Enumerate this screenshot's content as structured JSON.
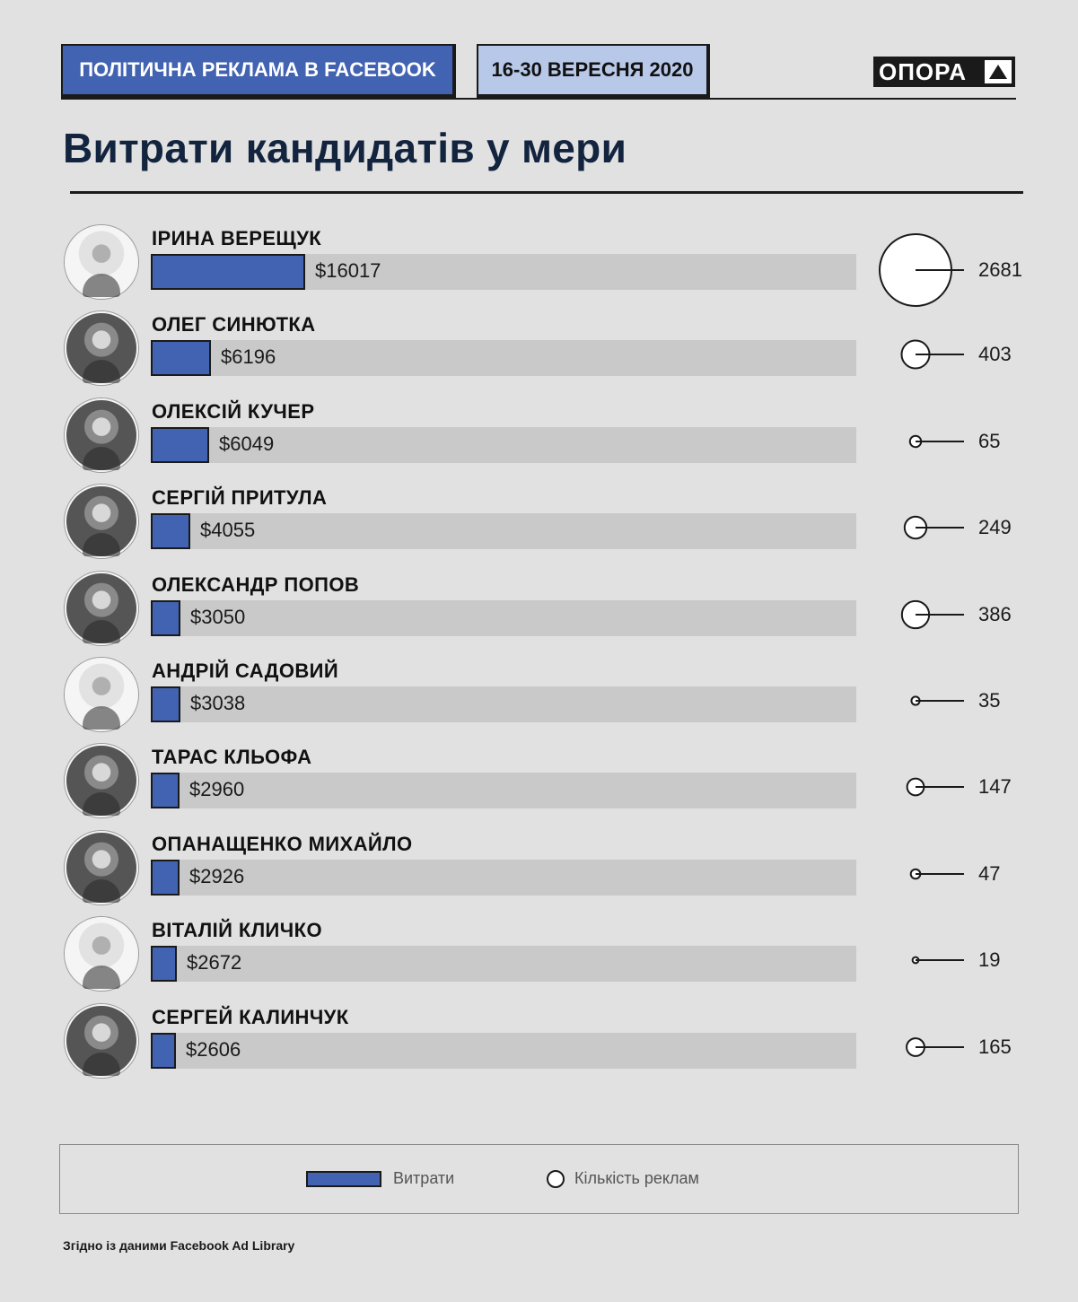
{
  "header": {
    "topic": "ПОЛІТИЧНА РЕКЛАМА В FACEBOOK",
    "period": "16-30 ВЕРЕСНЯ 2020",
    "logo": "ОПОРА"
  },
  "title": "Витрати кандидатів у мери",
  "colors": {
    "spend_bar": "#4263b1",
    "track": "#c9c9c9",
    "period_box": "#b7c8e8",
    "title": "#13243f"
  },
  "chart_data": {
    "type": "bar",
    "orientation": "horizontal",
    "title": "Витрати кандидатів у мери",
    "categories": [
      "ІРИНА ВЕРЕЩУК",
      "ОЛЕГ СИНЮТКА",
      "ОЛЕКСІЙ КУЧЕР",
      "СЕРГІЙ ПРИТУЛА",
      "ОЛЕКСАНДР ПОПОВ",
      "АНДРІЙ САДОВИЙ",
      "ТАРАС КЛЬОФА",
      "ОПАНАЩЕНКО МИХАЙЛО",
      "ВІТАЛІЙ КЛИЧКО",
      "СЕРГЕЙ КАЛИНЧУК"
    ],
    "series": [
      {
        "name": "Витрати",
        "values": [
          16017,
          6196,
          6049,
          4055,
          3050,
          3038,
          2960,
          2926,
          2672,
          2606
        ],
        "labels": [
          "$16017",
          "$6196",
          "$6049",
          "$4055",
          "$3050",
          "$3038",
          "$2960",
          "$2926",
          "$2672",
          "$2606"
        ]
      },
      {
        "name": "Кількість реклам",
        "values": [
          2681,
          403,
          65,
          249,
          386,
          35,
          147,
          47,
          19,
          165
        ],
        "labels": [
          "2681",
          "403",
          "65",
          "249",
          "386",
          "35",
          "147",
          "47",
          "19",
          "165"
        ]
      }
    ],
    "xlim": [
      0,
      73000
    ],
    "legend": "bottom"
  },
  "legend": {
    "spend_label": "Витрати",
    "ads_label": "Кількість реклам"
  },
  "source": "Згідно із даними Facebook Ad Library"
}
